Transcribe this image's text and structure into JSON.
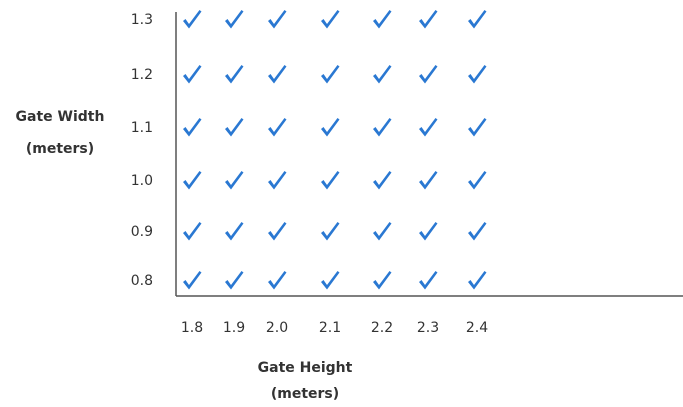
{
  "y_axis": {
    "label": [
      "Gate Width",
      "(meters)"
    ],
    "ticks": [
      "1.3",
      "1.2",
      "1.1",
      "1.0",
      "0.9",
      "0.8"
    ]
  },
  "x_axis": {
    "label": [
      "Gate Height",
      "(meters)"
    ],
    "ticks": [
      "1.8",
      "1.9",
      "2.0",
      "2.1",
      "2.2",
      "2.3",
      "2.4"
    ]
  }
}
